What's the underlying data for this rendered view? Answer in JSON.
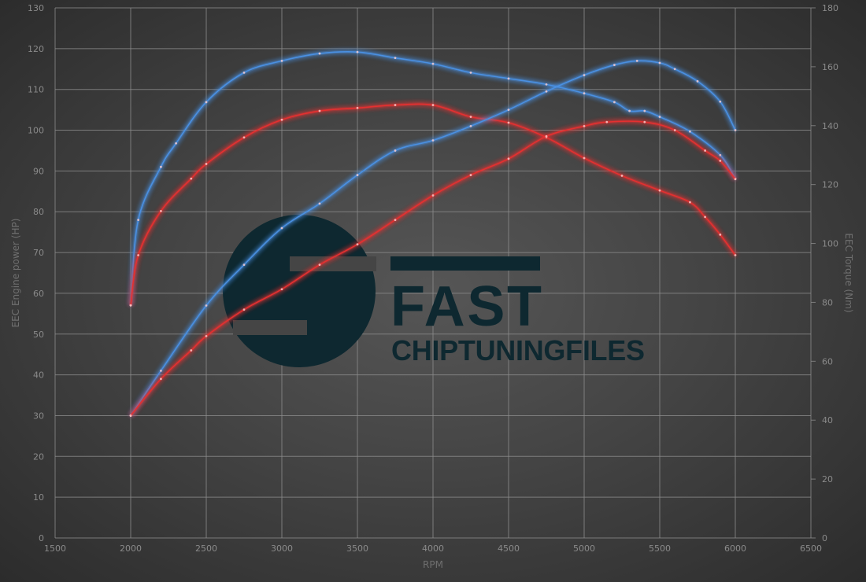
{
  "chart_data": {
    "type": "line",
    "xlabel": "RPM",
    "ylabel_left": "EEC Engine power (HP)",
    "ylabel_right": "EEC Torque (Nm)",
    "xlim": [
      1500,
      6500
    ],
    "ylim_left": [
      0,
      130
    ],
    "ylim_right": [
      0,
      180
    ],
    "x_ticks": [
      1500,
      2000,
      2500,
      3000,
      3500,
      4000,
      4500,
      5000,
      5500,
      6000,
      6500
    ],
    "y_ticks_left": [
      0,
      10,
      20,
      30,
      40,
      50,
      60,
      70,
      80,
      90,
      100,
      110,
      120,
      130
    ],
    "y_ticks_right": [
      0,
      20,
      40,
      60,
      80,
      100,
      120,
      140,
      160,
      180
    ],
    "grid": true,
    "legend": "none",
    "series": [
      {
        "axis": "right",
        "color": "#4a90e2",
        "x": [
          2000,
          2050,
          2200,
          2300,
          2500,
          2750,
          3000,
          3250,
          3500,
          3750,
          4000,
          4250,
          4500,
          4750,
          5000,
          5200,
          5300,
          5400,
          5500,
          5700,
          5900,
          6000
        ],
        "values": [
          79,
          108,
          126,
          134,
          148,
          158,
          162,
          164.5,
          165,
          163,
          161,
          158,
          156,
          154,
          151,
          148,
          145,
          145,
          143,
          138,
          130,
          122
        ]
      },
      {
        "axis": "right",
        "color": "#e53030",
        "x": [
          2000,
          2050,
          2200,
          2400,
          2500,
          2750,
          3000,
          3250,
          3500,
          3750,
          4000,
          4250,
          4500,
          4750,
          5000,
          5250,
          5500,
          5700,
          5800,
          5900,
          6000
        ],
        "values": [
          79,
          96,
          111,
          122,
          127,
          136,
          142,
          145,
          146,
          147,
          147,
          143,
          141,
          136,
          129,
          123,
          118,
          114,
          109,
          103,
          96
        ]
      },
      {
        "axis": "left",
        "color": "#4a90e2",
        "x": [
          2000,
          2200,
          2500,
          2750,
          3000,
          3250,
          3500,
          3750,
          4000,
          4250,
          4500,
          4750,
          5000,
          5200,
          5350,
          5500,
          5600,
          5750,
          5900,
          6000
        ],
        "values": [
          30,
          41,
          57,
          67,
          76,
          82,
          89,
          95,
          97.5,
          101,
          105,
          109.5,
          113.5,
          116,
          117,
          116.5,
          115,
          112,
          107,
          100
        ]
      },
      {
        "axis": "left",
        "color": "#e53030",
        "x": [
          2000,
          2200,
          2400,
          2500,
          2750,
          3000,
          3250,
          3500,
          3750,
          4000,
          4250,
          4500,
          4750,
          5000,
          5150,
          5400,
          5600,
          5800,
          5900,
          6000
        ],
        "values": [
          30,
          39,
          46,
          49.5,
          56,
          61,
          67,
          72,
          78,
          84,
          89,
          93,
          98.5,
          101,
          102,
          102,
          100,
          95,
          92.5,
          88
        ]
      }
    ]
  },
  "watermark": {
    "line1": "FAST",
    "line2": "CHIPTUNINGFILES",
    "color": "#0e2830"
  }
}
